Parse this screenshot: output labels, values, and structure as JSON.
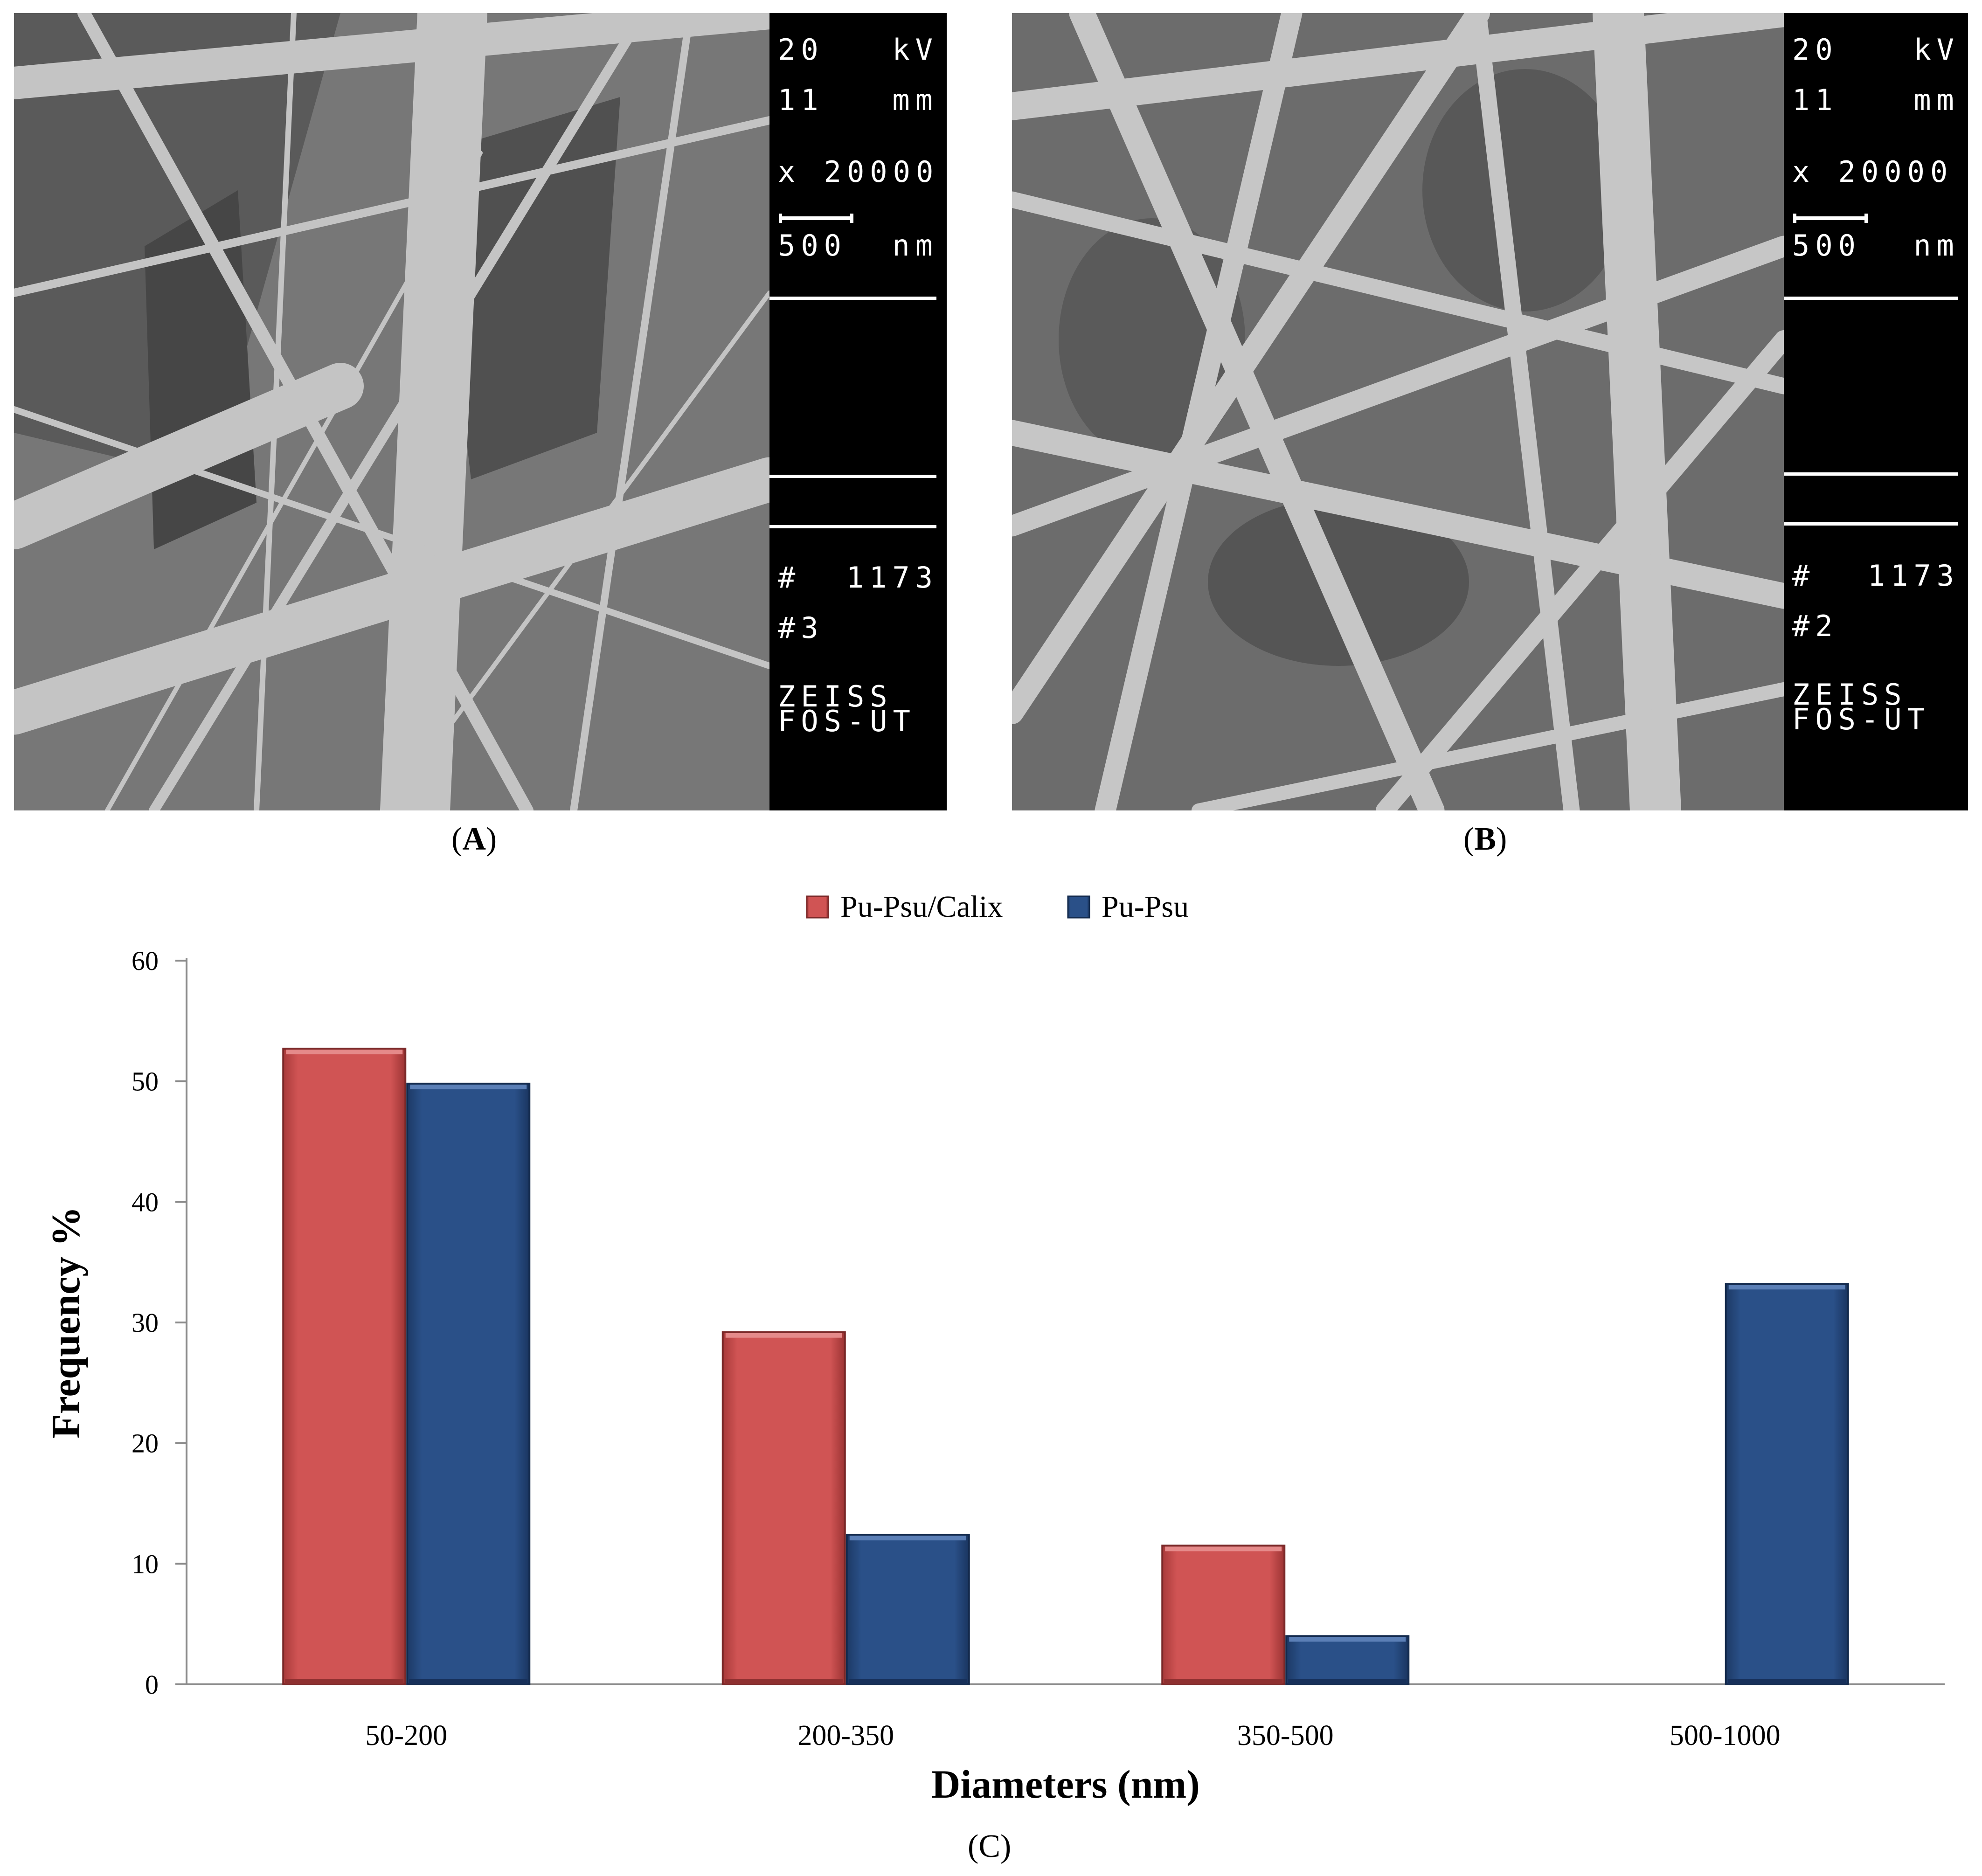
{
  "panel_a": {
    "label_letter": "A",
    "databar": {
      "voltage_value": "20",
      "voltage_unit": "kV",
      "wd_value": "11",
      "wd_unit": "mm",
      "mag": "x 20000",
      "scale_value": "500",
      "scale_unit": "nm",
      "id_hash": "#",
      "id_value": "1173",
      "image_no": "#3",
      "maker_line1": "ZEISS",
      "maker_line2": "FOS-UT"
    }
  },
  "panel_b": {
    "label_letter": "B",
    "databar": {
      "voltage_value": "20",
      "voltage_unit": "kV",
      "wd_value": "11",
      "wd_unit": "mm",
      "mag": "x 20000",
      "scale_value": "500",
      "scale_unit": "nm",
      "id_hash": "#",
      "id_value": "1173",
      "image_no": "#2",
      "maker_line1": "ZEISS",
      "maker_line2": "FOS-UT"
    }
  },
  "panel_c": {
    "label_letter": "C"
  },
  "chart_data": {
    "type": "bar",
    "title": "",
    "xlabel": "Diameters (nm)",
    "ylabel": "Frequency %",
    "ylim": [
      0,
      60
    ],
    "yticks": [
      0,
      10,
      20,
      30,
      40,
      50,
      60
    ],
    "grid": false,
    "legend": "top-center",
    "categories": [
      "50-200",
      "200-350",
      "350-500",
      "500-1000"
    ],
    "series": [
      {
        "name": "Pu-Psu/Calix",
        "color": "#d05454",
        "values": [
          52.7,
          29.2,
          11.5,
          0
        ]
      },
      {
        "name": "Pu-Psu",
        "color": "#2a5088",
        "values": [
          49.8,
          12.4,
          4.0,
          33.2
        ]
      }
    ]
  }
}
